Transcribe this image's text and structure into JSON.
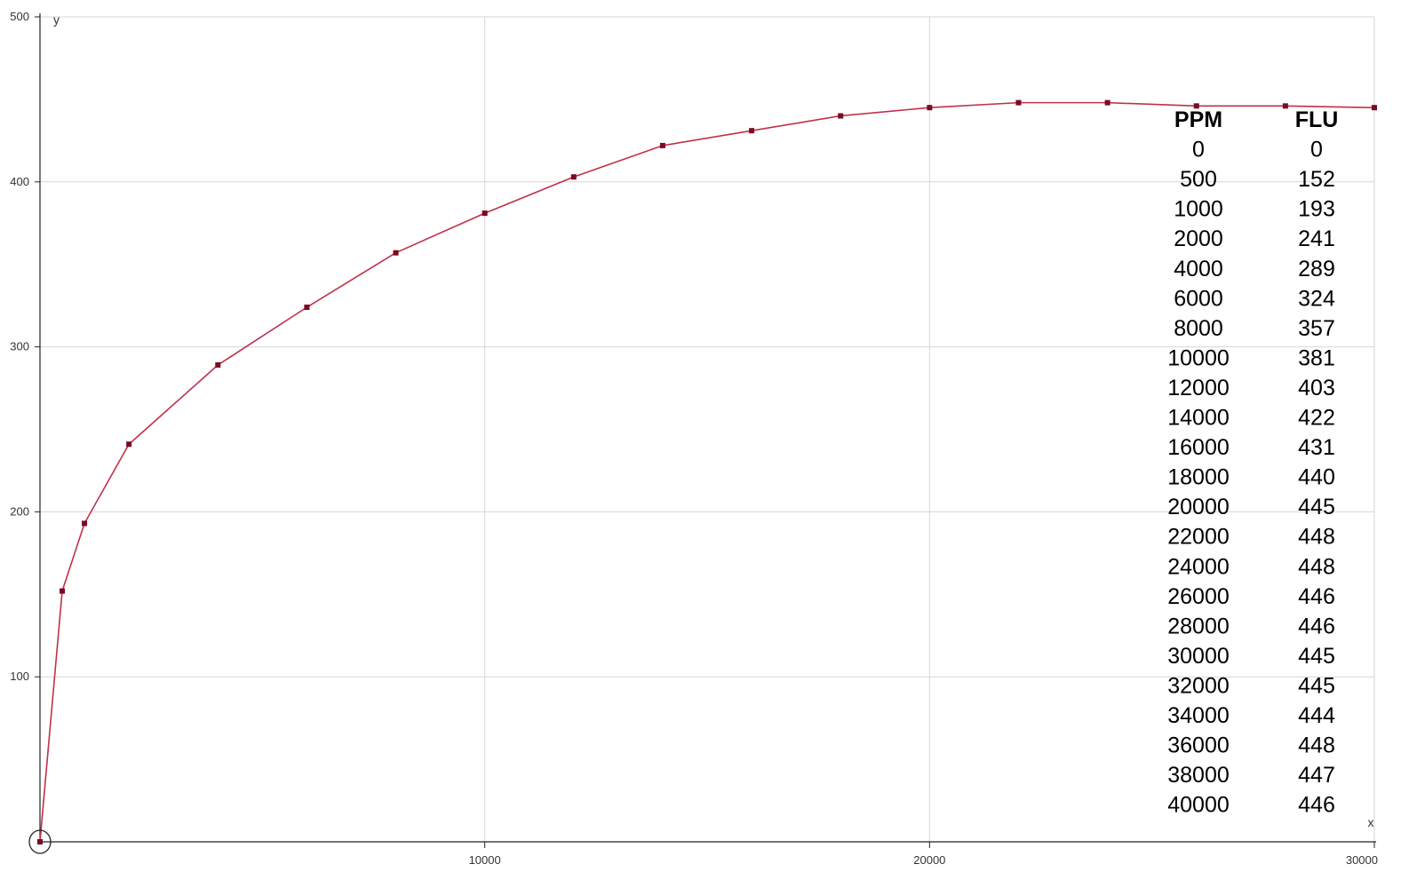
{
  "chart_data": {
    "type": "line",
    "title": "",
    "xlabel": "x",
    "ylabel": "y",
    "xlim": [
      0,
      30000
    ],
    "ylim": [
      0,
      500
    ],
    "grid": true,
    "x_ticks": [
      10000,
      20000,
      30000
    ],
    "y_ticks": [
      100,
      200,
      300,
      400,
      500
    ],
    "series": [
      {
        "color": "#c0304a",
        "marker_color": "#7a0a24",
        "x": [
          0,
          500,
          1000,
          2000,
          4000,
          6000,
          8000,
          10000,
          12000,
          14000,
          16000,
          18000,
          20000,
          22000,
          24000,
          26000,
          28000,
          30000
        ],
        "y": [
          0,
          152,
          193,
          241,
          289,
          324,
          357,
          381,
          403,
          422,
          431,
          440,
          445,
          448,
          448,
          446,
          446,
          445
        ]
      }
    ],
    "table": {
      "headers": [
        "PPM",
        "FLU"
      ],
      "rows": [
        [
          "0",
          "0"
        ],
        [
          "500",
          "152"
        ],
        [
          "1000",
          "193"
        ],
        [
          "2000",
          "241"
        ],
        [
          "4000",
          "289"
        ],
        [
          "6000",
          "324"
        ],
        [
          "8000",
          "357"
        ],
        [
          "10000",
          "381"
        ],
        [
          "12000",
          "403"
        ],
        [
          "14000",
          "422"
        ],
        [
          "16000",
          "431"
        ],
        [
          "18000",
          "440"
        ],
        [
          "20000",
          "445"
        ],
        [
          "22000",
          "448"
        ],
        [
          "24000",
          "448"
        ],
        [
          "26000",
          "446"
        ],
        [
          "28000",
          "446"
        ],
        [
          "30000",
          "445"
        ],
        [
          "32000",
          "445"
        ],
        [
          "34000",
          "444"
        ],
        [
          "36000",
          "448"
        ],
        [
          "38000",
          "447"
        ],
        [
          "40000",
          "446"
        ]
      ]
    }
  }
}
